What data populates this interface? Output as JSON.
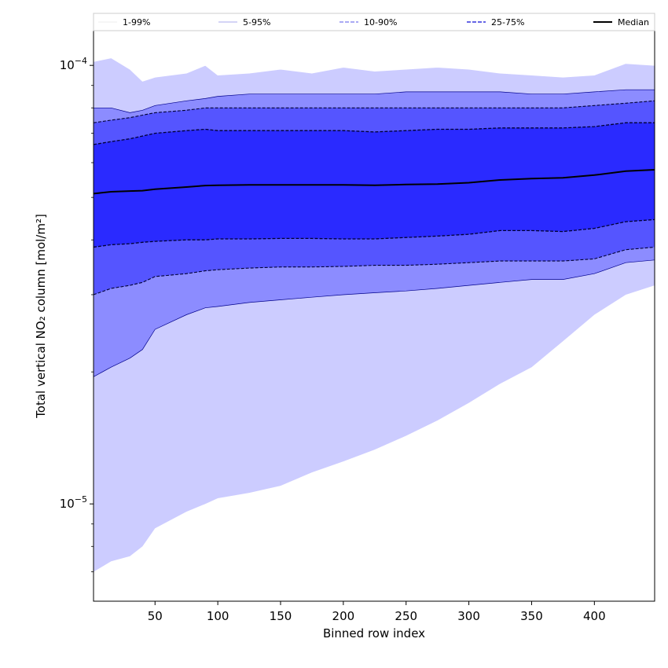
{
  "chart_data": {
    "type": "area",
    "title": "",
    "xlabel": "Binned row index",
    "ylabel": "Total vertical NO₂ column [mol/m²]",
    "xlim": [
      1,
      448
    ],
    "ylim": [
      6e-06,
      0.00012
    ],
    "yscale": "log",
    "x_ticks": [
      50,
      100,
      150,
      200,
      250,
      300,
      350,
      400
    ],
    "x_tick_labels": [
      "50",
      "100",
      "150",
      "200",
      "250",
      "300",
      "350",
      "400"
    ],
    "y_ticks": [
      1e-05,
      0.0001
    ],
    "y_tick_labels": [
      {
        "base": "10",
        "exp": "−5"
      },
      {
        "base": "10",
        "exp": "−4"
      }
    ],
    "legend": {
      "placement": "top (above plot, single row)",
      "entries": [
        "1-99%",
        "5-95%",
        "10-90%",
        "25-75%",
        "Median"
      ]
    },
    "x": [
      1,
      15,
      30,
      40,
      50,
      75,
      90,
      100,
      125,
      150,
      175,
      200,
      225,
      250,
      275,
      300,
      325,
      350,
      375,
      400,
      425,
      448
    ],
    "series": [
      {
        "name": "1-99%",
        "color": "#ccccff",
        "lower_color": "#ccccff",
        "lower": [
          7e-06,
          7.4e-06,
          7.6e-06,
          8e-06,
          8.8e-06,
          9.6e-06,
          1e-05,
          1.03e-05,
          1.06e-05,
          1.1e-05,
          1.18e-05,
          1.25e-05,
          1.33e-05,
          1.43e-05,
          1.55e-05,
          1.7e-05,
          1.88e-05,
          2.05e-05,
          2.35e-05,
          2.7e-05,
          3e-05,
          3.15e-05
        ],
        "upper": [
          0.000102,
          0.000104,
          9.8e-05,
          9.2e-05,
          9.4e-05,
          9.6e-05,
          0.0001,
          9.5e-05,
          9.6e-05,
          9.8e-05,
          9.6e-05,
          9.9e-05,
          9.7e-05,
          9.8e-05,
          9.9e-05,
          9.8e-05,
          9.6e-05,
          9.5e-05,
          9.4e-05,
          9.5e-05,
          0.000101,
          0.0001
        ]
      },
      {
        "name": "5-95%",
        "color": "#8c8cff",
        "lower": [
          1.95e-05,
          2.05e-05,
          2.15e-05,
          2.25e-05,
          2.5e-05,
          2.7e-05,
          2.8e-05,
          2.82e-05,
          2.88e-05,
          2.92e-05,
          2.96e-05,
          3e-05,
          3.03e-05,
          3.06e-05,
          3.1e-05,
          3.15e-05,
          3.2e-05,
          3.25e-05,
          3.25e-05,
          3.35e-05,
          3.55e-05,
          3.6e-05
        ],
        "upper": [
          8e-05,
          8e-05,
          7.8e-05,
          7.9e-05,
          8.1e-05,
          8.3e-05,
          8.4e-05,
          8.5e-05,
          8.6e-05,
          8.6e-05,
          8.6e-05,
          8.6e-05,
          8.6e-05,
          8.7e-05,
          8.7e-05,
          8.7e-05,
          8.7e-05,
          8.6e-05,
          8.6e-05,
          8.7e-05,
          8.8e-05,
          8.8e-05
        ]
      },
      {
        "name": "10-90%",
        "color": "#5555ff",
        "lower": [
          3e-05,
          3.1e-05,
          3.15e-05,
          3.2e-05,
          3.3e-05,
          3.35e-05,
          3.4e-05,
          3.42e-05,
          3.45e-05,
          3.47e-05,
          3.47e-05,
          3.48e-05,
          3.5e-05,
          3.5e-05,
          3.52e-05,
          3.55e-05,
          3.58e-05,
          3.58e-05,
          3.58e-05,
          3.62e-05,
          3.8e-05,
          3.85e-05
        ],
        "upper": [
          7.4e-05,
          7.5e-05,
          7.6e-05,
          7.7e-05,
          7.8e-05,
          7.9e-05,
          8e-05,
          8e-05,
          8e-05,
          8e-05,
          8e-05,
          8e-05,
          8e-05,
          8e-05,
          8e-05,
          8e-05,
          8e-05,
          8e-05,
          8e-05,
          8.1e-05,
          8.2e-05,
          8.3e-05
        ]
      },
      {
        "name": "25-75%",
        "color": "#2a2aff",
        "lower": [
          3.85e-05,
          3.9e-05,
          3.92e-05,
          3.95e-05,
          3.97e-05,
          4e-05,
          4e-05,
          4.02e-05,
          4.02e-05,
          4.03e-05,
          4.03e-05,
          4.02e-05,
          4.02e-05,
          4.05e-05,
          4.08e-05,
          4.12e-05,
          4.2e-05,
          4.2e-05,
          4.18e-05,
          4.25e-05,
          4.4e-05,
          4.45e-05
        ],
        "upper": [
          6.6e-05,
          6.7e-05,
          6.8e-05,
          6.9e-05,
          7e-05,
          7.1e-05,
          7.15e-05,
          7.1e-05,
          7.1e-05,
          7.1e-05,
          7.1e-05,
          7.1e-05,
          7.05e-05,
          7.1e-05,
          7.15e-05,
          7.15e-05,
          7.2e-05,
          7.2e-05,
          7.2e-05,
          7.25e-05,
          7.4e-05,
          7.4e-05
        ]
      },
      {
        "name": "Median",
        "color": "#000000",
        "values": [
          5.1e-05,
          5.15e-05,
          5.17e-05,
          5.18e-05,
          5.22e-05,
          5.28e-05,
          5.32e-05,
          5.33e-05,
          5.34e-05,
          5.34e-05,
          5.34e-05,
          5.34e-05,
          5.33e-05,
          5.35e-05,
          5.36e-05,
          5.4e-05,
          5.48e-05,
          5.52e-05,
          5.54e-05,
          5.62e-05,
          5.74e-05,
          5.78e-05
        ]
      }
    ],
    "grid": false
  }
}
